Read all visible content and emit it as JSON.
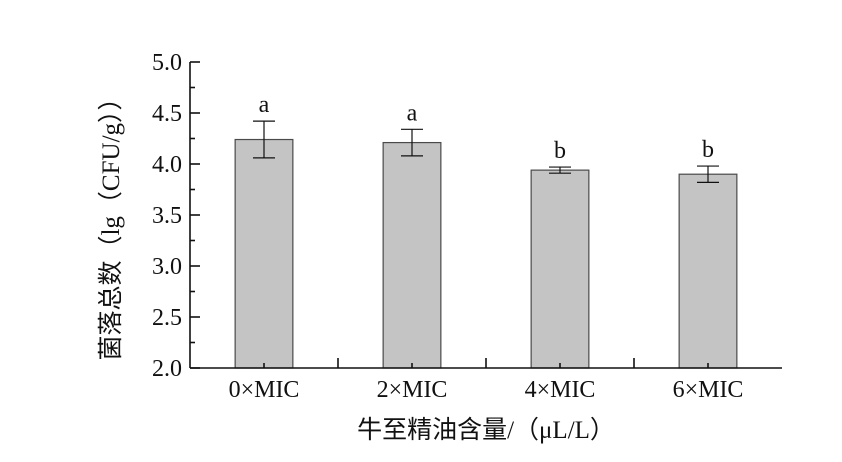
{
  "chart_data": {
    "type": "bar",
    "categories": [
      "0×MIC",
      "2×MIC",
      "4×MIC",
      "6×MIC"
    ],
    "values": [
      4.24,
      4.21,
      3.94,
      3.9
    ],
    "errors": [
      0.18,
      0.13,
      0.03,
      0.08
    ],
    "significance_labels": [
      "a",
      "a",
      "b",
      "b"
    ],
    "xlabel": "牛至精油含量/（μL/L）",
    "ylabel": "菌落总数（lg（CFU/g））",
    "ylim": [
      2.0,
      5.0
    ],
    "y_ticks": [
      "2.0",
      "2.5",
      "3.0",
      "3.5",
      "4.0",
      "4.5",
      "5.0"
    ],
    "grid": false,
    "colors": {
      "bar_fill": "#c4c4c4",
      "bar_stroke": "#4a4a4a",
      "axis": "#111111"
    }
  }
}
